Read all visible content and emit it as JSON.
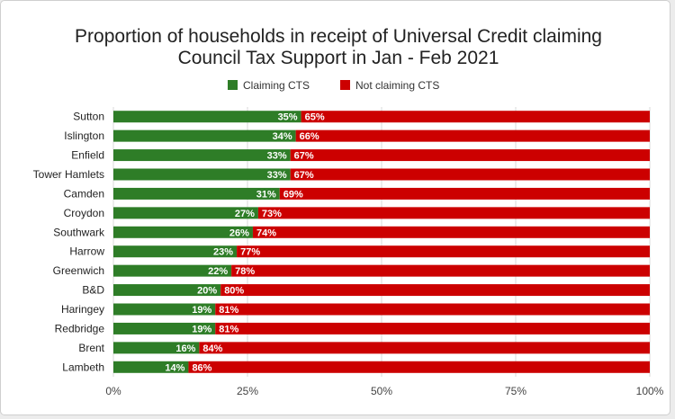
{
  "chart_data": {
    "type": "bar",
    "orientation": "horizontal",
    "stacked": "percent",
    "title_lines": [
      "Proportion of households in receipt of Universal Credit claiming",
      "Council Tax Support in Jan - Feb 2021"
    ],
    "legend_position": "top-center",
    "categories": [
      "Sutton",
      "Islington",
      "Enfield",
      "Tower Hamlets",
      "Camden",
      "Croydon",
      "Southwark",
      "Harrow",
      "Greenwich",
      "B&D",
      "Haringey",
      "Redbridge",
      "Brent",
      "Lambeth"
    ],
    "series": [
      {
        "name": "Claiming CTS",
        "color": "#2e7d27",
        "values": [
          35,
          34,
          33,
          33,
          31,
          27,
          26,
          23,
          22,
          20,
          19,
          19,
          16,
          14
        ],
        "labels": [
          "35%",
          "34%",
          "33%",
          "33%",
          "31%",
          "27%",
          "26%",
          "23%",
          "22%",
          "20%",
          "19%",
          "19%",
          "16%",
          "14%"
        ]
      },
      {
        "name": "Not claiming CTS",
        "color": "#cc0000",
        "values": [
          65,
          66,
          67,
          67,
          69,
          73,
          74,
          77,
          78,
          80,
          81,
          81,
          84,
          86
        ],
        "labels": [
          "65%",
          "66%",
          "67%",
          "67%",
          "69%",
          "73%",
          "74%",
          "77%",
          "78%",
          "80%",
          "81%",
          "81%",
          "84%",
          "86%"
        ]
      }
    ],
    "xlim": [
      0,
      100
    ],
    "x_ticks": [
      0,
      25,
      50,
      75,
      100
    ],
    "x_tick_labels": [
      "0%",
      "25%",
      "50%",
      "75%",
      "100%"
    ],
    "grid": true
  }
}
